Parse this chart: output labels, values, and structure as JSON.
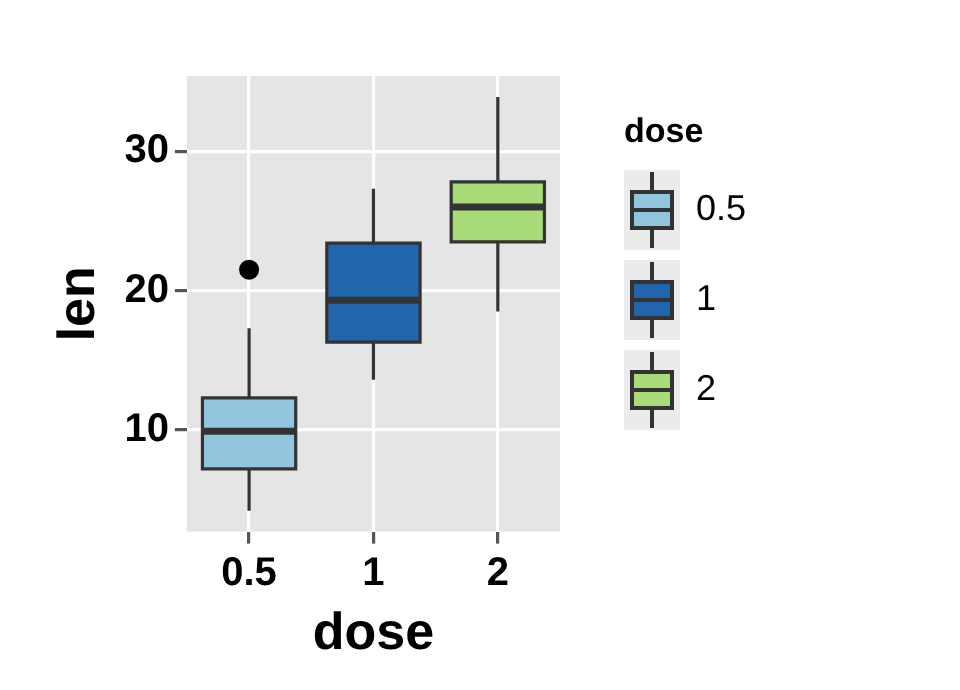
{
  "chart_data": {
    "type": "box",
    "categories": [
      "0.5",
      "1",
      "2"
    ],
    "xlabel": "dose",
    "ylabel": "len",
    "legend_title": "dose",
    "legend": "right",
    "grid": true,
    "ylim": [
      2.7,
      35.4
    ],
    "yticks": [
      10,
      20,
      30
    ],
    "series": [
      {
        "name": "0.5",
        "color": "#92c5de",
        "boxes": [
          {
            "low": 4.2,
            "q1": 7.2,
            "median": 9.9,
            "q3": 12.3,
            "high": 17.3,
            "outliers": [
              21.5
            ]
          },
          null,
          null
        ]
      },
      {
        "name": "1",
        "color": "#2166ac",
        "boxes": [
          null,
          {
            "low": 13.6,
            "q1": 16.3,
            "median": 19.3,
            "q3": 23.4,
            "high": 27.3
          },
          null
        ]
      },
      {
        "name": "2",
        "color": "#a6db78",
        "boxes": [
          null,
          null,
          {
            "low": 18.5,
            "q1": 23.5,
            "median": 26.0,
            "q3": 27.8,
            "high": 33.9
          }
        ]
      }
    ]
  }
}
